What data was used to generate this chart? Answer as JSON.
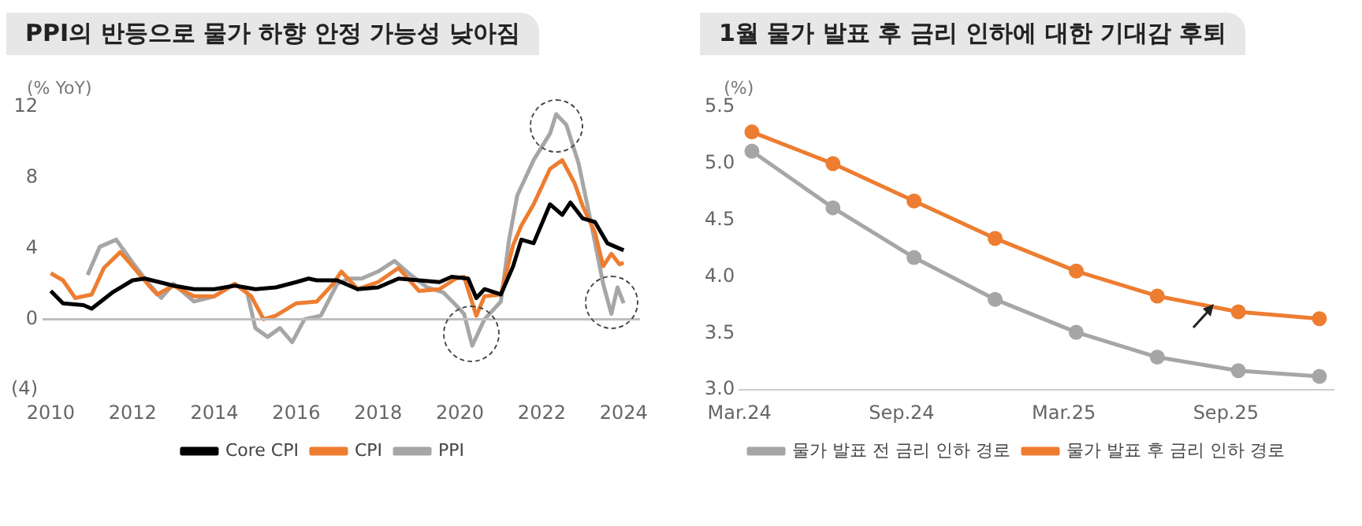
{
  "chart_data": [
    {
      "type": "line",
      "title": "PPI의 반등으로 물가 하향 안정 가능성 낮아짐",
      "ylabel": "(% YoY)",
      "xlim": [
        2009.8,
        2024.4
      ],
      "xticks": [
        2010,
        2012,
        2014,
        2016,
        2018,
        2020,
        2022,
        2024
      ],
      "ylim": [
        -4,
        12
      ],
      "yticks": [
        {
          "value": -4,
          "label": "(4)"
        },
        0,
        4,
        8,
        12
      ],
      "grid": false,
      "legend": "bottom",
      "marker": "none",
      "line_style": "solid",
      "ref_lines": [
        {
          "axis": "y",
          "value": 0,
          "color": "#bfbfbf"
        }
      ],
      "series": [
        {
          "name": "Core CPI",
          "color": "#000000",
          "x": [
            2010.0,
            2010.3,
            2010.8,
            2011.0,
            2011.5,
            2012.0,
            2012.3,
            2013.0,
            2013.5,
            2014.0,
            2014.5,
            2015.0,
            2015.5,
            2016.0,
            2016.3,
            2016.5,
            2017.0,
            2017.5,
            2018.0,
            2018.5,
            2019.0,
            2019.5,
            2019.8,
            2020.2,
            2020.4,
            2020.6,
            2021.0,
            2021.3,
            2021.5,
            2021.8,
            2022.2,
            2022.5,
            2022.7,
            2023.0,
            2023.3,
            2023.6,
            2024.0
          ],
          "values": [
            1.6,
            0.9,
            0.8,
            0.6,
            1.5,
            2.2,
            2.3,
            1.9,
            1.7,
            1.7,
            1.9,
            1.7,
            1.8,
            2.1,
            2.3,
            2.2,
            2.2,
            1.7,
            1.8,
            2.3,
            2.2,
            2.1,
            2.4,
            2.3,
            1.2,
            1.7,
            1.4,
            3.0,
            4.5,
            4.3,
            6.5,
            5.9,
            6.6,
            5.7,
            5.5,
            4.3,
            3.9
          ]
        },
        {
          "name": "CPI",
          "color": "#ed7d31",
          "x": [
            2010.0,
            2010.3,
            2010.6,
            2011.0,
            2011.3,
            2011.7,
            2012.0,
            2012.4,
            2012.6,
            2013.0,
            2013.5,
            2014.0,
            2014.5,
            2014.9,
            2015.2,
            2015.5,
            2016.0,
            2016.5,
            2016.9,
            2017.1,
            2017.5,
            2018.0,
            2018.5,
            2019.0,
            2019.5,
            2019.9,
            2020.1,
            2020.4,
            2020.6,
            2021.0,
            2021.3,
            2021.5,
            2021.8,
            2022.2,
            2022.5,
            2022.8,
            2023.0,
            2023.3,
            2023.5,
            2023.7,
            2023.9,
            2024.0
          ],
          "values": [
            2.6,
            2.2,
            1.2,
            1.4,
            2.9,
            3.8,
            3.0,
            1.9,
            1.4,
            1.9,
            1.3,
            1.3,
            2.0,
            1.3,
            0.0,
            0.2,
            0.9,
            1.0,
            2.0,
            2.7,
            1.7,
            2.1,
            2.9,
            1.6,
            1.7,
            2.3,
            2.4,
            0.2,
            1.3,
            1.4,
            4.2,
            5.3,
            6.5,
            8.5,
            9.0,
            7.7,
            6.4,
            4.9,
            3.0,
            3.7,
            3.1,
            3.2
          ]
        },
        {
          "name": "PPI",
          "color": "#a6a6a6",
          "x": [
            2010.9,
            2011.2,
            2011.6,
            2012.0,
            2012.4,
            2012.7,
            2013.0,
            2013.5,
            2014.0,
            2014.5,
            2014.8,
            2015.0,
            2015.3,
            2015.6,
            2015.9,
            2016.2,
            2016.6,
            2017.0,
            2017.3,
            2017.6,
            2018.0,
            2018.4,
            2018.8,
            2019.2,
            2019.6,
            2019.9,
            2020.1,
            2020.3,
            2020.6,
            2021.0,
            2021.2,
            2021.4,
            2021.8,
            2022.2,
            2022.35,
            2022.6,
            2022.9,
            2023.2,
            2023.5,
            2023.7,
            2023.85,
            2024.0
          ],
          "values": [
            2.5,
            4.1,
            4.5,
            3.2,
            2.0,
            1.2,
            2.0,
            1.0,
            1.3,
            2.0,
            1.5,
            -0.5,
            -1.0,
            -0.5,
            -1.3,
            0.0,
            0.2,
            2.0,
            2.3,
            2.3,
            2.7,
            3.3,
            2.5,
            1.8,
            1.5,
            0.8,
            0.3,
            -1.5,
            0.0,
            1.0,
            4.5,
            7.0,
            9.0,
            10.5,
            11.6,
            11.0,
            8.8,
            5.5,
            2.0,
            0.3,
            1.8,
            0.9
          ]
        }
      ]
    },
    {
      "type": "line",
      "title": "1월 물가 발표 후 금리 인하에 대한 기대감 후퇴",
      "ylabel": "(%)",
      "x": [
        "2024-03-15",
        "2024-06-15",
        "2024-09-15",
        "2024-12-15",
        "2025-03-15",
        "2025-06-15",
        "2025-09-15",
        "2025-12-15"
      ],
      "xlim": [
        "2024-03-01",
        "2025-12-31"
      ],
      "xticks": [
        {
          "value": "2024-03-01",
          "label": "Mar.24"
        },
        {
          "value": "2024-09-01",
          "label": "Sep.24"
        },
        {
          "value": "2025-03-01",
          "label": "Mar.25"
        },
        {
          "value": "2025-09-01",
          "label": "Sep.25"
        }
      ],
      "ylim": [
        3.0,
        5.5
      ],
      "yticks": [
        {
          "value": 3.0,
          "label": "3.0"
        },
        3.5,
        {
          "value": 4.0,
          "label": "4.0"
        },
        4.5,
        {
          "value": 5.0,
          "label": "5.0"
        },
        5.5
      ],
      "grid": false,
      "legend": "bottom",
      "marker": "circle",
      "line_style": "solid",
      "series": [
        {
          "name": "물가 발표 전 금리 인하 경로",
          "color": "#a6a6a6",
          "values": [
            5.11,
            4.61,
            4.17,
            3.8,
            3.51,
            3.29,
            3.17,
            3.12
          ]
        },
        {
          "name": "물가 발표 후 금리 인하 경로",
          "color": "#ed7d31",
          "values": [
            5.28,
            5.0,
            4.67,
            4.34,
            4.05,
            3.83,
            3.69,
            3.63
          ]
        }
      ]
    }
  ]
}
